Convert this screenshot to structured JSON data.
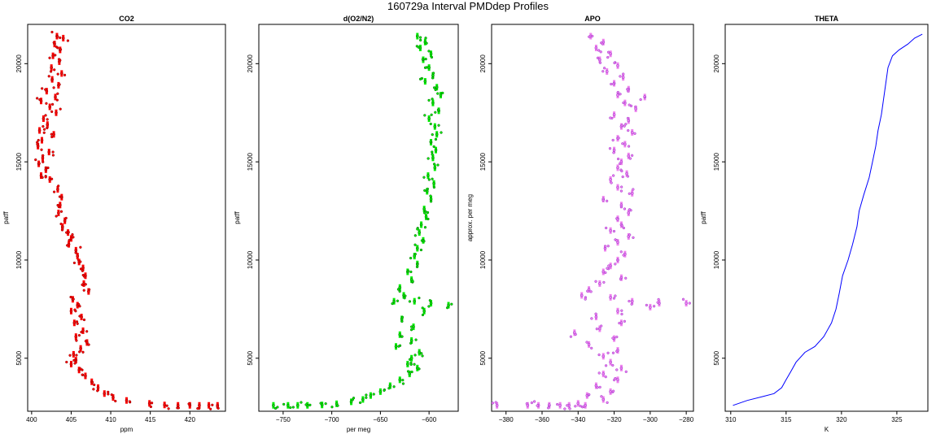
{
  "title": "160729a   Interval PMDdep Profiles",
  "chart_data": [
    {
      "type": "scatter",
      "title": "CO2",
      "xlabel": "ppm",
      "ylabel": "patff",
      "xlim": [
        399.5,
        424.5
      ],
      "ylim": [
        2300,
        22000
      ],
      "xticks": [
        400,
        405,
        410,
        415,
        420
      ],
      "yticks": [
        5000,
        10000,
        15000,
        20000
      ],
      "color": "#ff0000",
      "edge_color": "#8b0000",
      "series": [
        {
          "points": [
            [
              403.2,
              21400
            ],
            [
              404.0,
              21300
            ],
            [
              402.9,
              21000
            ],
            [
              403.6,
              20700
            ],
            [
              402.7,
              20400
            ],
            [
              403.5,
              20100
            ],
            [
              402.5,
              19800
            ],
            [
              403.8,
              19500
            ],
            [
              402.6,
              19200
            ],
            [
              403.4,
              18900
            ],
            [
              401.9,
              18600
            ],
            [
              403.0,
              18300
            ],
            [
              401.2,
              18100
            ],
            [
              402.3,
              17800
            ],
            [
              403.1,
              17500
            ],
            [
              401.5,
              17200
            ],
            [
              402.0,
              16900
            ],
            [
              401.0,
              16600
            ],
            [
              402.8,
              16400
            ],
            [
              401.3,
              16100
            ],
            [
              400.8,
              15800
            ],
            [
              402.2,
              15500
            ],
            [
              401.4,
              15200
            ],
            [
              400.9,
              14900
            ],
            [
              401.8,
              14600
            ],
            [
              401.2,
              14300
            ],
            [
              402.3,
              14100
            ],
            [
              403.3,
              13600
            ],
            [
              403.8,
              13200
            ],
            [
              403.6,
              12800
            ],
            [
              403.4,
              12400
            ],
            [
              404.2,
              12000
            ],
            [
              403.9,
              11700
            ],
            [
              404.6,
              11400
            ],
            [
              405.0,
              11100
            ],
            [
              404.7,
              10800
            ],
            [
              405.6,
              10500
            ],
            [
              405.8,
              10200
            ],
            [
              406.0,
              9900
            ],
            [
              406.5,
              9600
            ],
            [
              406.8,
              9200
            ],
            [
              406.6,
              8800
            ],
            [
              407.2,
              8400
            ],
            [
              405.2,
              8000
            ],
            [
              405.8,
              7700
            ],
            [
              405.0,
              7400
            ],
            [
              406.3,
              7100
            ],
            [
              405.4,
              6800
            ],
            [
              406.5,
              6400
            ],
            [
              405.6,
              6100
            ],
            [
              407.0,
              5800
            ],
            [
              406.2,
              5500
            ],
            [
              405.3,
              5200
            ],
            [
              405.6,
              4900
            ],
            [
              405.0,
              4700
            ],
            [
              406.0,
              4400
            ],
            [
              406.8,
              4100
            ],
            [
              407.6,
              3800
            ],
            [
              408.4,
              3500
            ],
            [
              409.2,
              3200
            ],
            [
              410.3,
              3000
            ],
            [
              412.0,
              2850
            ],
            [
              414.9,
              2700
            ],
            [
              416.8,
              2620
            ],
            [
              418.5,
              2600
            ],
            [
              420.0,
              2600
            ],
            [
              421.2,
              2600
            ],
            [
              422.4,
              2600
            ],
            [
              423.5,
              2600
            ]
          ]
        }
      ]
    },
    {
      "type": "scatter",
      "title": "d(O2/N2)",
      "xlabel": "per meg",
      "ylabel": "patff",
      "xlim": [
        -775,
        -570
      ],
      "ylim": [
        2300,
        22000
      ],
      "xticks": [
        -750,
        -700,
        -650,
        -600
      ],
      "yticks": [
        5000,
        10000,
        15000,
        20000
      ],
      "color": "#00ee00",
      "edge_color": "#006400",
      "series": [
        {
          "points": [
            [
              -612,
              21400
            ],
            [
              -604,
              21100
            ],
            [
              -609,
              20800
            ],
            [
              -598,
              20500
            ],
            [
              -606,
              20200
            ],
            [
              -600,
              19800
            ],
            [
              -596,
              19400
            ],
            [
              -604,
              19100
            ],
            [
              -592,
              18800
            ],
            [
              -588,
              18400
            ],
            [
              -596,
              18000
            ],
            [
              -590,
              17600
            ],
            [
              -600,
              17200
            ],
            [
              -594,
              16800
            ],
            [
              -592,
              16400
            ],
            [
              -598,
              16000
            ],
            [
              -593,
              15600
            ],
            [
              -596,
              15200
            ],
            [
              -594,
              14700
            ],
            [
              -601,
              14300
            ],
            [
              -595,
              13900
            ],
            [
              -602,
              13500
            ],
            [
              -598,
              13100
            ],
            [
              -605,
              12600
            ],
            [
              -603,
              12200
            ],
            [
              -608,
              11800
            ],
            [
              -610,
              11400
            ],
            [
              -606,
              11000
            ],
            [
              -612,
              10600
            ],
            [
              -615,
              10200
            ],
            [
              -612,
              9800
            ],
            [
              -622,
              9400
            ],
            [
              -618,
              9000
            ],
            [
              -630,
              8600
            ],
            [
              -626,
              8200
            ],
            [
              -636,
              7900
            ],
            [
              -615,
              7900
            ],
            [
              -598,
              7800
            ],
            [
              -580,
              7700
            ],
            [
              -605,
              7400
            ],
            [
              -628,
              7000
            ],
            [
              -616,
              6600
            ],
            [
              -630,
              6200
            ],
            [
              -618,
              5900
            ],
            [
              -634,
              5600
            ],
            [
              -610,
              5300
            ],
            [
              -618,
              5000
            ],
            [
              -622,
              4700
            ],
            [
              -612,
              4500
            ],
            [
              -620,
              4200
            ],
            [
              -630,
              3900
            ],
            [
              -640,
              3600
            ],
            [
              -650,
              3300
            ],
            [
              -660,
              3100
            ],
            [
              -668,
              2900
            ],
            [
              -680,
              2780
            ],
            [
              -695,
              2680
            ],
            [
              -710,
              2620
            ],
            [
              -725,
              2600
            ],
            [
              -735,
              2600
            ],
            [
              -745,
              2600
            ],
            [
              -760,
              2600
            ]
          ]
        }
      ]
    },
    {
      "type": "scatter",
      "title": "APO",
      "xlabel": "",
      "ylabel": "approx. per meg",
      "xlim": [
        -388,
        -276
      ],
      "ylim": [
        2300,
        22000
      ],
      "xticks": [
        -380,
        -360,
        -340,
        -320,
        -300,
        -280
      ],
      "yticks": [
        5000,
        10000,
        15000,
        20000
      ],
      "color": "#ee82ee",
      "edge_color": "#9932cc",
      "series": [
        {
          "points": [
            [
              -333,
              21400
            ],
            [
              -326,
              21100
            ],
            [
              -330,
              20800
            ],
            [
              -322,
              20500
            ],
            [
              -328,
              20200
            ],
            [
              -318,
              19900
            ],
            [
              -324,
              19600
            ],
            [
              -315,
              19300
            ],
            [
              -320,
              19000
            ],
            [
              -312,
              18700
            ],
            [
              -318,
              18400
            ],
            [
              -303,
              18300
            ],
            [
              -314,
              18000
            ],
            [
              -308,
              17700
            ],
            [
              -320,
              17400
            ],
            [
              -312,
              17100
            ],
            [
              -316,
              16800
            ],
            [
              -310,
              16500
            ],
            [
              -318,
              16200
            ],
            [
              -314,
              15900
            ],
            [
              -320,
              15600
            ],
            [
              -312,
              15300
            ],
            [
              -316,
              15000
            ],
            [
              -318,
              14700
            ],
            [
              -313,
              14400
            ],
            [
              -322,
              14100
            ],
            [
              -318,
              13700
            ],
            [
              -310,
              13400
            ],
            [
              -326,
              13100
            ],
            [
              -316,
              12800
            ],
            [
              -312,
              12400
            ],
            [
              -318,
              12100
            ],
            [
              -316,
              11800
            ],
            [
              -322,
              11500
            ],
            [
              -312,
              11200
            ],
            [
              -318,
              10900
            ],
            [
              -325,
              10600
            ],
            [
              -314,
              10300
            ],
            [
              -318,
              10000
            ],
            [
              -322,
              9700
            ],
            [
              -326,
              9400
            ],
            [
              -316,
              9100
            ],
            [
              -328,
              8800
            ],
            [
              -334,
              8500
            ],
            [
              -338,
              8200
            ],
            [
              -322,
              8100
            ],
            [
              -310,
              7900
            ],
            [
              -295,
              7800
            ],
            [
              -280,
              7800
            ],
            [
              -300,
              7600
            ],
            [
              -318,
              7400
            ],
            [
              -330,
              7100
            ],
            [
              -316,
              6800
            ],
            [
              -328,
              6500
            ],
            [
              -342,
              6300
            ],
            [
              -320,
              6000
            ],
            [
              -334,
              5700
            ],
            [
              -318,
              5400
            ],
            [
              -326,
              5100
            ],
            [
              -322,
              4800
            ],
            [
              -316,
              4500
            ],
            [
              -326,
              4200
            ],
            [
              -318,
              3900
            ],
            [
              -330,
              3600
            ],
            [
              -322,
              3300
            ],
            [
              -335,
              3100
            ],
            [
              -326,
              2900
            ],
            [
              -340,
              2700
            ],
            [
              -345,
              2600
            ],
            [
              -350,
              2600
            ],
            [
              -356,
              2600
            ],
            [
              -362,
              2600
            ],
            [
              -368,
              2600
            ],
            [
              -385,
              2600
            ],
            [
              -336,
              2600
            ]
          ]
        }
      ]
    },
    {
      "type": "line",
      "title": "THETA",
      "xlabel": "K",
      "ylabel": "patff",
      "xlim": [
        309.5,
        327.8
      ],
      "ylim": [
        2300,
        22000
      ],
      "xticks": [
        310,
        315,
        320,
        325
      ],
      "yticks": [
        5000,
        10000,
        15000,
        20000
      ],
      "color": "#0000ff",
      "series": [
        {
          "points": [
            [
              310.2,
              2600
            ],
            [
              311.5,
              2850
            ],
            [
              312.9,
              3050
            ],
            [
              313.9,
              3200
            ],
            [
              314.6,
              3500
            ],
            [
              315.0,
              3900
            ],
            [
              315.4,
              4300
            ],
            [
              315.9,
              4800
            ],
            [
              316.7,
              5300
            ],
            [
              317.6,
              5600
            ],
            [
              318.4,
              6100
            ],
            [
              319.1,
              6800
            ],
            [
              319.5,
              7500
            ],
            [
              319.8,
              8300
            ],
            [
              320.1,
              9200
            ],
            [
              320.6,
              10000
            ],
            [
              321.0,
              10800
            ],
            [
              321.4,
              11700
            ],
            [
              321.6,
              12500
            ],
            [
              322.0,
              13300
            ],
            [
              322.5,
              14200
            ],
            [
              322.8,
              15000
            ],
            [
              323.1,
              15800
            ],
            [
              323.3,
              16600
            ],
            [
              323.6,
              17400
            ],
            [
              323.8,
              18200
            ],
            [
              324.0,
              19000
            ],
            [
              324.2,
              19800
            ],
            [
              324.6,
              20400
            ],
            [
              325.2,
              20700
            ],
            [
              326.0,
              21000
            ],
            [
              326.6,
              21300
            ],
            [
              327.3,
              21500
            ]
          ]
        }
      ]
    }
  ]
}
